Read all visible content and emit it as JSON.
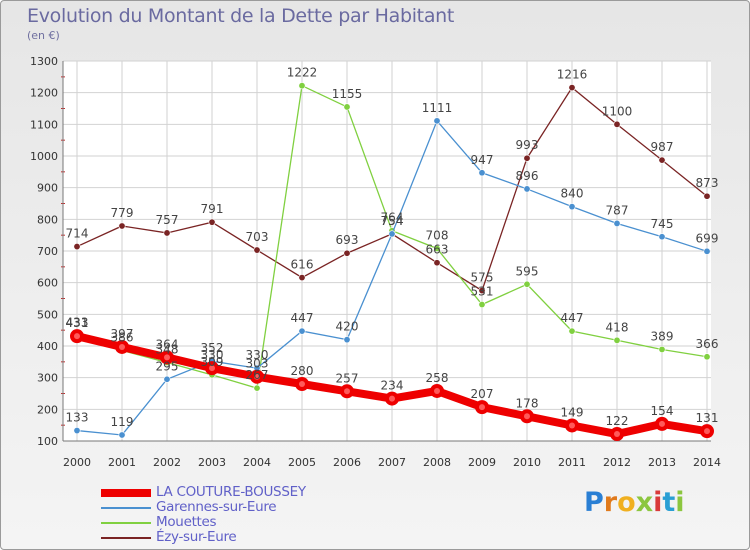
{
  "logo": {
    "text": "Proxiti"
  },
  "chart_data": {
    "type": "line",
    "title": "Evolution du Montant de la Dette par Habitant",
    "ylabel": "(en €)",
    "xlabel": "",
    "x": [
      "2000",
      "2001",
      "2002",
      "2003",
      "2004",
      "2005",
      "2006",
      "2007",
      "2008",
      "2009",
      "2010",
      "2011",
      "2012",
      "2013",
      "2014"
    ],
    "ylim": [
      100,
      1300
    ],
    "yticks": [
      100,
      200,
      300,
      400,
      500,
      600,
      700,
      800,
      900,
      1000,
      1100,
      1200,
      1300
    ],
    "grid": true,
    "legend_position": "bottom-left",
    "series": [
      {
        "name": "Ézy-sur-Eure",
        "color": "#7a2424",
        "values": [
          714,
          779,
          757,
          791,
          703,
          616,
          693,
          754,
          663,
          575,
          993,
          1216,
          1100,
          987,
          873
        ],
        "labels": [
          "714",
          "779",
          "757",
          "791",
          "703",
          "616",
          "693",
          "754",
          "663",
          "575",
          "993",
          "1216",
          "1100",
          "987",
          "873"
        ]
      },
      {
        "name": "Mouettes",
        "color": "#80d040",
        "values": [
          433,
          386,
          348,
          309,
          267,
          1222,
          1155,
          764,
          708,
          531,
          595,
          447,
          418,
          389,
          366
        ],
        "labels": [
          "433",
          "386",
          "348",
          "309",
          "267",
          "1222",
          "1155",
          "764",
          "708",
          "531",
          "595",
          "447",
          "418",
          "389",
          "366"
        ]
      },
      {
        "name": "Garennes-sur-Eure",
        "color": "#4a90d0",
        "values": [
          133,
          119,
          295,
          352,
          330,
          447,
          420,
          754,
          1111,
          947,
          896,
          840,
          787,
          745,
          699
        ],
        "labels": [
          "133",
          "119",
          "295",
          "352",
          "330",
          "447",
          "420",
          "754",
          "1111",
          "947",
          "896",
          "840",
          "787",
          "745",
          "699"
        ]
      },
      {
        "name": "LA COUTURE-BOUSSEY",
        "color": "#ee0000",
        "values": [
          431,
          397,
          364,
          330,
          303,
          280,
          257,
          234,
          258,
          207,
          178,
          149,
          122,
          154,
          131
        ],
        "labels": [
          "431",
          "397",
          "364",
          "330",
          "303",
          "280",
          "257",
          "234",
          "258",
          "207",
          "178",
          "149",
          "122",
          "154",
          "131"
        ]
      }
    ],
    "legend_order": [
      "LA COUTURE-BOUSSEY",
      "Garennes-sur-Eure",
      "Mouettes",
      "Ézy-sur-Eure"
    ]
  }
}
